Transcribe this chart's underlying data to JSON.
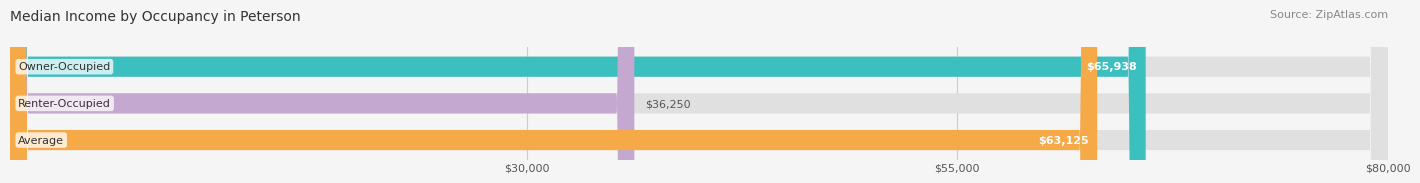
{
  "title": "Median Income by Occupancy in Peterson",
  "source": "Source: ZipAtlas.com",
  "categories": [
    "Owner-Occupied",
    "Renter-Occupied",
    "Average"
  ],
  "values": [
    65938,
    36250,
    63125
  ],
  "bar_colors": [
    "#3bbfbf",
    "#c4a8d0",
    "#f5a947"
  ],
  "bar_bg_color": "#e0e0e0",
  "value_labels": [
    "$65,938",
    "$36,250",
    "$63,125"
  ],
  "xmin": 0,
  "xmax": 80000,
  "xticks": [
    30000,
    55000,
    80000
  ],
  "xtick_labels": [
    "$30,000",
    "$55,000",
    "$80,000"
  ],
  "fig_width": 14.06,
  "fig_height": 1.96,
  "bg_color": "#f5f5f5",
  "title_fontsize": 10,
  "source_fontsize": 8,
  "label_fontsize": 8,
  "value_fontsize": 8
}
